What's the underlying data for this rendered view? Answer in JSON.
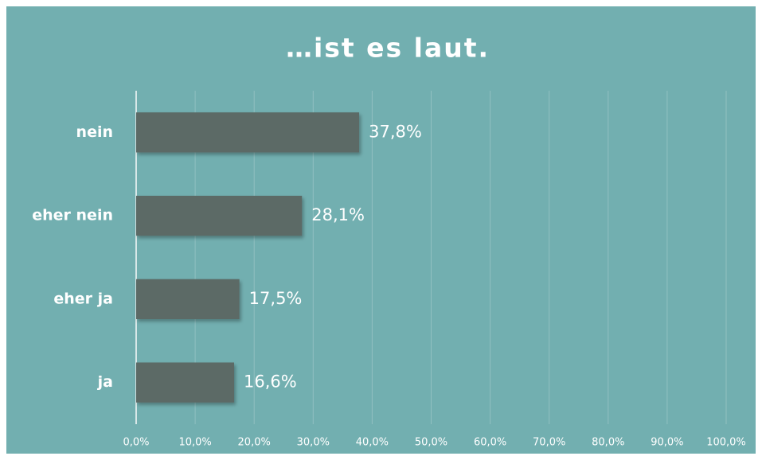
{
  "chart_data": {
    "type": "bar",
    "orientation": "horizontal",
    "title": "…ist es laut.",
    "categories": [
      "nein",
      "eher nein",
      "eher ja",
      "ja"
    ],
    "values": [
      37.8,
      28.1,
      17.5,
      16.6
    ],
    "value_labels": [
      "37,8%",
      "28,1%",
      "17,5%",
      "16,6%"
    ],
    "color": "#5b6b66",
    "xlim": [
      0,
      100
    ],
    "xticks": [
      {
        "value": 0,
        "label": "0,0%"
      },
      {
        "value": 10,
        "label": "10,0%"
      },
      {
        "value": 20,
        "label": "20,0%"
      },
      {
        "value": 30,
        "label": "30,0%"
      },
      {
        "value": 40,
        "label": "40,0%"
      },
      {
        "value": 50,
        "label": "50,0%"
      },
      {
        "value": 60,
        "label": "60,0%"
      },
      {
        "value": 70,
        "label": "70,0%"
      },
      {
        "value": 80,
        "label": "80,0%"
      },
      {
        "value": 90,
        "label": "90,0%"
      },
      {
        "value": 100,
        "label": "100,0%"
      }
    ],
    "grid": true
  }
}
